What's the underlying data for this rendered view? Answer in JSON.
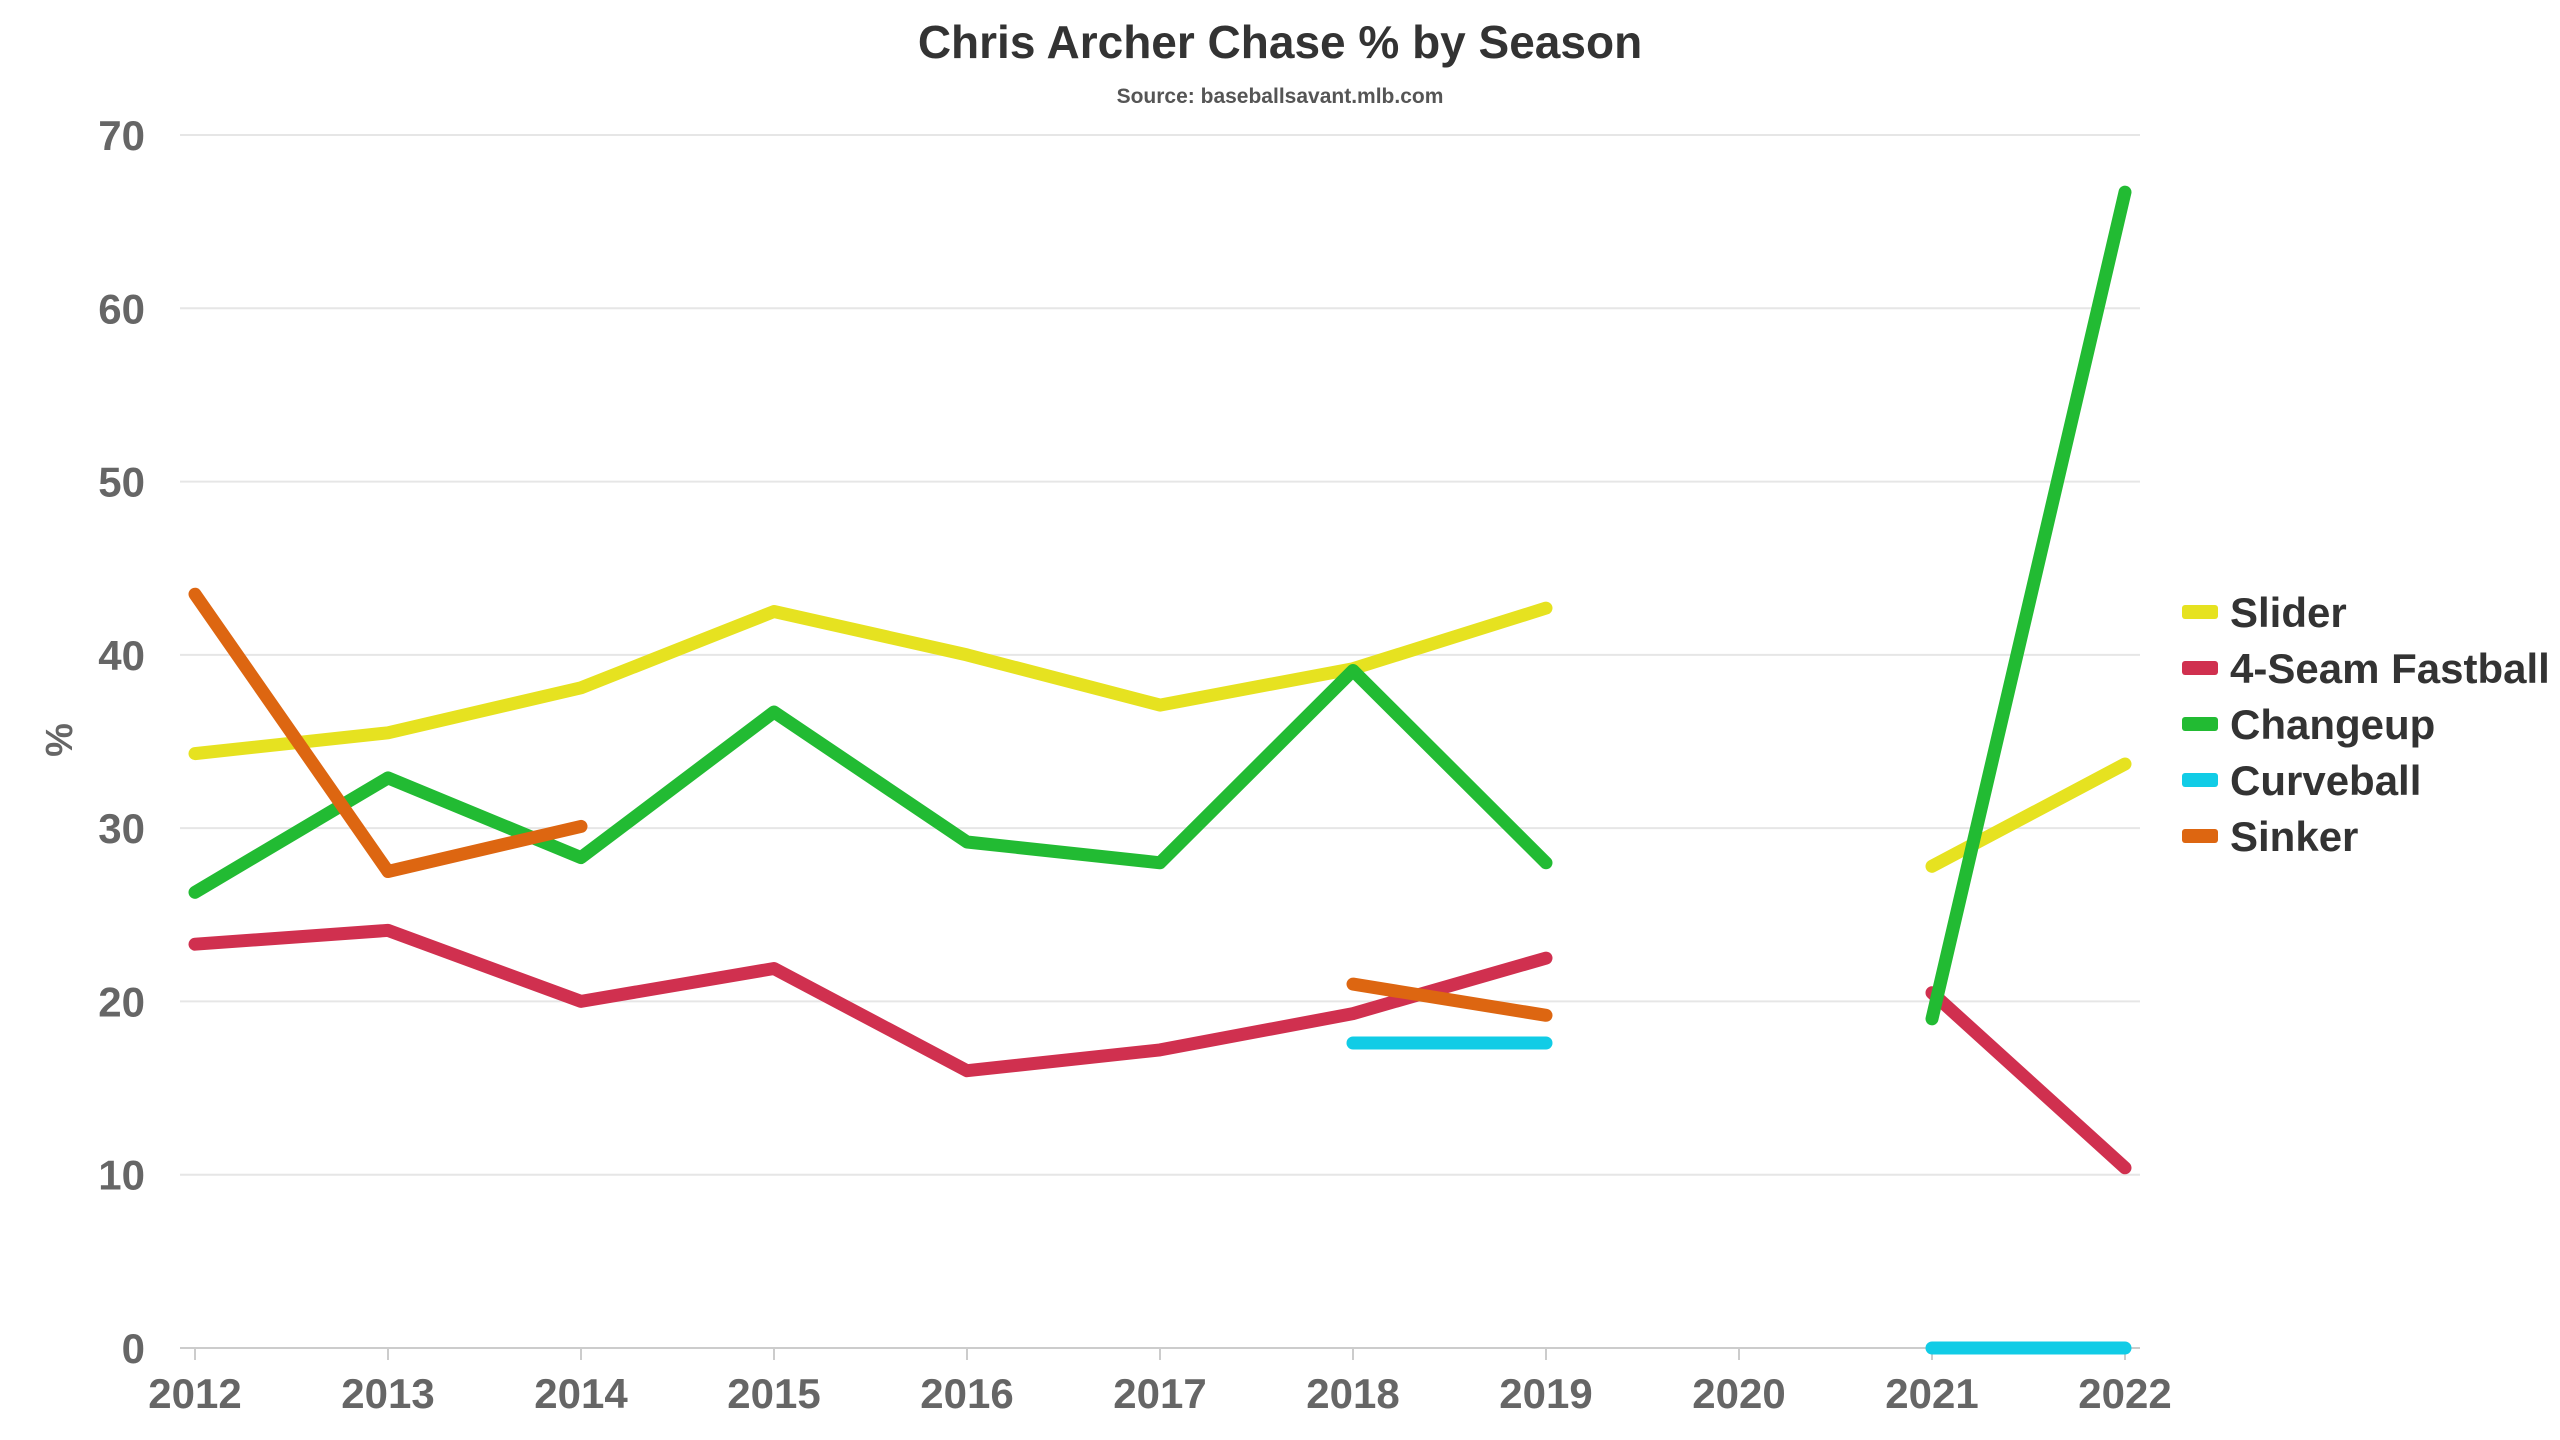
{
  "chart_data": {
    "type": "line",
    "title": "Chris Archer Chase % by Season",
    "subtitle": "Source: baseballsavant.mlb.com",
    "ylabel": "%",
    "xlabel": "",
    "ylim": [
      0,
      70
    ],
    "yticks": [
      0,
      10,
      20,
      30,
      40,
      50,
      60,
      70
    ],
    "grid": true,
    "legend_position": "right",
    "categories": [
      "2012",
      "2013",
      "2014",
      "2015",
      "2016",
      "2017",
      "2018",
      "2019",
      "2020",
      "2021",
      "2022"
    ],
    "series": [
      {
        "name": "Slider",
        "color": "#e6e220",
        "values": [
          34.3,
          35.5,
          38.1,
          42.5,
          40.0,
          37.1,
          39.2,
          42.7,
          null,
          27.8,
          33.7
        ]
      },
      {
        "name": "4-Seam Fastball",
        "color": "#d0304f",
        "values": [
          23.3,
          24.1,
          20.0,
          21.9,
          16.0,
          17.2,
          19.3,
          22.5,
          null,
          20.5,
          10.4
        ]
      },
      {
        "name": "Changeup",
        "color": "#22bb33",
        "values": [
          26.3,
          32.9,
          28.3,
          36.7,
          29.2,
          28.0,
          39.1,
          28.0,
          null,
          19.0,
          66.7
        ]
      },
      {
        "name": "Curveball",
        "color": "#11cce6",
        "values": [
          null,
          null,
          null,
          null,
          null,
          null,
          17.6,
          17.6,
          null,
          0.0,
          0.0
        ]
      },
      {
        "name": "Sinker",
        "color": "#dd6611",
        "values": [
          43.5,
          27.5,
          30.1,
          null,
          null,
          null,
          21.0,
          19.2,
          null,
          null,
          null
        ]
      }
    ]
  }
}
